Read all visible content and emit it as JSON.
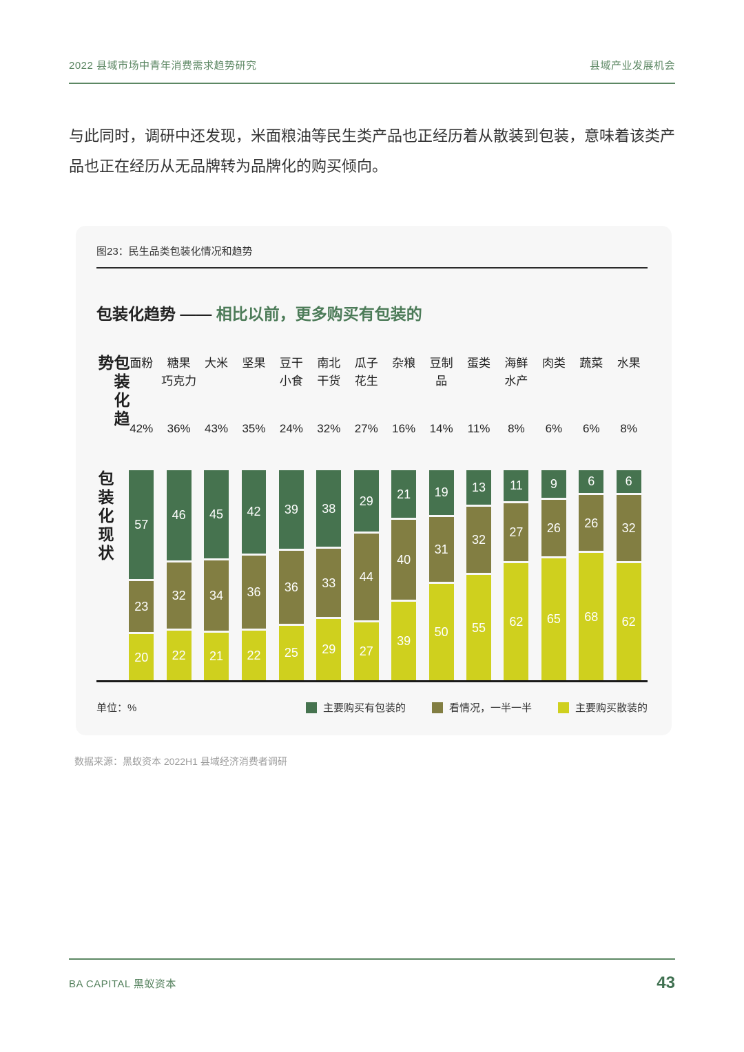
{
  "page": {
    "header_left": "2022 县域市场中青年消费需求趋势研究",
    "header_right": "县域产业发展机会",
    "body_paragraph": "与此同时，调研中还发现，米面粮油等民生类产品也正经历着从散装到包装，意味着该类产品也正在经历从无品牌转为品牌化的购买倾向。",
    "source_note": "数据来源：黑蚁资本 2022H1 县域经济消费者调研",
    "footer_left": "BA CAPITAL 黑蚁资本",
    "page_number": "43"
  },
  "figure": {
    "caption": "图23：民生品类包装化情况和趋势",
    "title_black": "包装化趋势 ——",
    "title_green": "相比以前，更多购买有包装的",
    "row_label_trend": "包装化趋势",
    "row_label_current": "包装化现状",
    "unit_label": "单位：%"
  },
  "colors": {
    "header_green": "#5c8763",
    "title_green": "#4c7b58",
    "footer_green": "#3f7050",
    "series_packaged": "#46734f",
    "series_half": "#827e42",
    "series_bulk": "#cfd01e"
  },
  "chart_data": {
    "type": "bar",
    "stacked": true,
    "title": "包装化趋势 —— 相比以前，更多购买有包装的",
    "unit": "%",
    "ylim": [
      0,
      100
    ],
    "legend_position": "bottom-right",
    "categories": [
      "面粉",
      "糖果\n巧克力",
      "大米",
      "坚果",
      "豆干\n小食",
      "南北\n干货",
      "瓜子\n花生",
      "杂粮",
      "豆制\n品",
      "蛋类",
      "海鲜\n水产",
      "肉类",
      "蔬菜",
      "水果"
    ],
    "trend_percent": [
      "42%",
      "36%",
      "43%",
      "35%",
      "24%",
      "32%",
      "27%",
      "16%",
      "14%",
      "11%",
      "8%",
      "6%",
      "6%",
      "8%"
    ],
    "series": [
      {
        "name": "主要购买有包装的",
        "color": "#46734f",
        "values": [
          57,
          46,
          45,
          42,
          39,
          38,
          29,
          21,
          19,
          13,
          11,
          9,
          6,
          6
        ]
      },
      {
        "name": "看情况，一半一半",
        "color": "#827e42",
        "values": [
          23,
          32,
          34,
          36,
          36,
          33,
          44,
          40,
          31,
          32,
          27,
          26,
          26,
          32
        ]
      },
      {
        "name": "主要购买散装的",
        "color": "#cfd01e",
        "values": [
          20,
          22,
          21,
          22,
          25,
          29,
          27,
          39,
          50,
          55,
          62,
          65,
          68,
          62
        ]
      }
    ]
  }
}
